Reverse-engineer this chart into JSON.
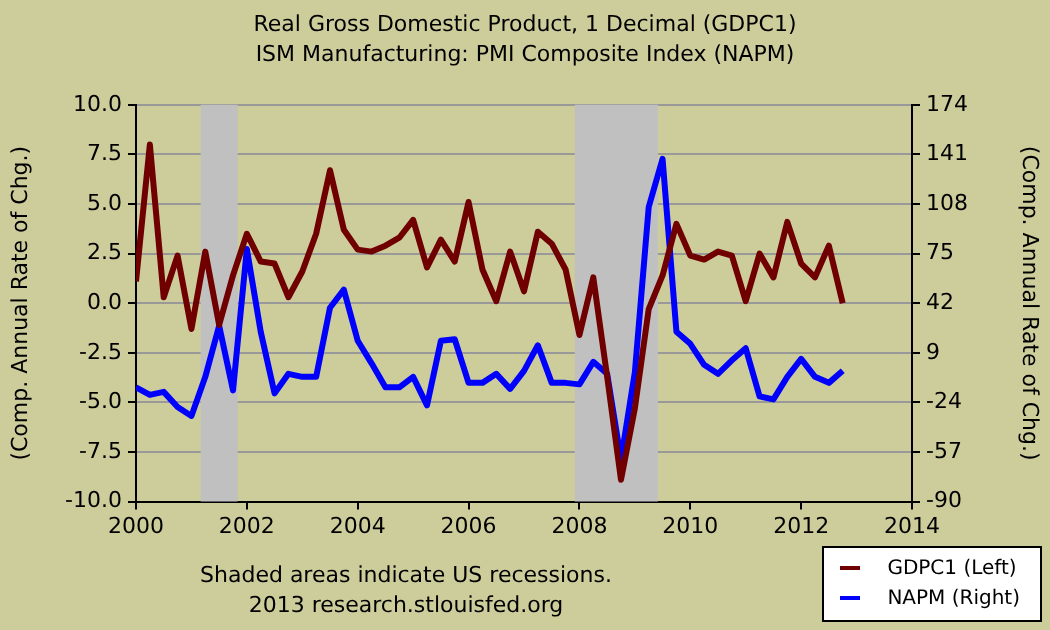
{
  "chart_data": {
    "type": "line",
    "title": "Real Gross Domestic Product, 1 Decimal (GDPC1)",
    "subtitle": "ISM Manufacturing: PMI Composite Index (NAPM)",
    "ylabel": "(Comp. Annual Rate of Chg.)",
    "y2label": "(Comp. Annual Rate of Chg.)",
    "x": [
      "2000-01",
      "2000-04",
      "2000-07",
      "2000-10",
      "2001-01",
      "2001-04",
      "2001-07",
      "2001-10",
      "2002-01",
      "2002-04",
      "2002-07",
      "2002-10",
      "2003-01",
      "2003-04",
      "2003-07",
      "2003-10",
      "2004-01",
      "2004-04",
      "2004-07",
      "2004-10",
      "2005-01",
      "2005-04",
      "2005-07",
      "2005-10",
      "2006-01",
      "2006-04",
      "2006-07",
      "2006-10",
      "2007-01",
      "2007-04",
      "2007-07",
      "2007-10",
      "2008-01",
      "2008-04",
      "2008-07",
      "2008-10",
      "2009-01",
      "2009-04",
      "2009-07",
      "2009-10",
      "2010-01",
      "2010-04",
      "2010-07",
      "2010-10",
      "2011-01",
      "2011-04",
      "2011-07",
      "2011-10",
      "2012-01",
      "2012-04",
      "2012-07",
      "2012-10"
    ],
    "series": [
      {
        "name": "GDPC1 (Left)",
        "color": "#700000",
        "values": [
          1.1,
          8.0,
          0.3,
          2.4,
          -1.3,
          2.6,
          -1.1,
          1.4,
          3.5,
          2.1,
          2.0,
          0.3,
          1.6,
          3.5,
          6.7,
          3.7,
          2.7,
          2.6,
          2.9,
          3.3,
          4.2,
          1.8,
          3.2,
          2.1,
          5.1,
          1.7,
          0.1,
          2.6,
          0.6,
          3.6,
          3.0,
          1.7,
          -1.6,
          1.3,
          -3.7,
          -8.9,
          -5.3,
          -0.3,
          1.4,
          4.0,
          2.4,
          2.2,
          2.6,
          2.4,
          0.1,
          2.5,
          1.3,
          4.1,
          2.0,
          1.3,
          2.9,
          0.0
        ]
      },
      {
        "name": "NAPM (Right)",
        "color": "#0000ff",
        "axis": "y2",
        "values": [
          -14,
          -19,
          -17,
          -27,
          -33,
          -7,
          27,
          -16,
          78,
          23,
          -18,
          -5,
          -7,
          -7,
          39,
          51,
          17,
          2,
          -14,
          -14,
          -7,
          -26,
          17,
          18,
          -11,
          -11,
          -5,
          -15,
          -3,
          14,
          -11,
          -11,
          -12,
          3,
          -5,
          -62,
          -4,
          106,
          138,
          23,
          15,
          1,
          -5,
          4,
          12,
          -20,
          -22,
          -7,
          5,
          -7,
          -11,
          -3
        ]
      }
    ],
    "xlim": [
      "2000",
      "2014"
    ],
    "xticks": [
      "2000",
      "2002",
      "2004",
      "2006",
      "2008",
      "2010",
      "2012",
      "2014"
    ],
    "ylim": [
      -10,
      10
    ],
    "yticks": [
      {
        "value": -10,
        "label": "-10.0"
      },
      -7.5,
      {
        "value": -5,
        "label": "-5.0"
      },
      -2.5,
      {
        "value": 0,
        "label": "0.0"
      },
      2.5,
      {
        "value": 5,
        "label": "5.0"
      },
      7.5,
      {
        "value": 10,
        "label": "10.0"
      }
    ],
    "y2lim": [
      -90,
      174
    ],
    "y2ticks": [
      -90,
      -57,
      -24,
      9,
      42,
      75,
      108,
      141,
      174
    ],
    "bands": [
      {
        "axis": "x",
        "from": "2001-03",
        "to": "2001-11",
        "color": "#c0c0c0"
      },
      {
        "axis": "x",
        "from": "2007-12",
        "to": "2009-06",
        "color": "#c0c0c0"
      }
    ],
    "annotations": [
      "Shaded areas indicate US recessions.",
      "2013 research.stlouisfed.org"
    ],
    "grid": "y",
    "legend": "bottom right",
    "marker": "none",
    "line_style": "solid"
  }
}
